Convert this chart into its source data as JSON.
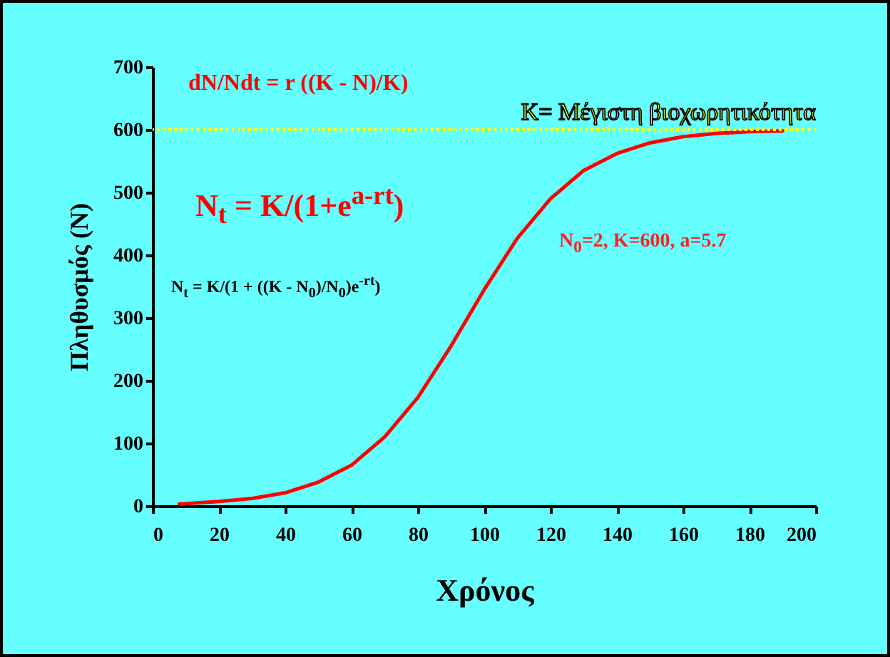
{
  "chart_data": {
    "type": "line",
    "xlabel": "Χρόνος",
    "ylabel": "Πληθυσμός (N)",
    "x": [
      8,
      20,
      30,
      40,
      50,
      60,
      70,
      80,
      90,
      100,
      110,
      120,
      130,
      140,
      150,
      160,
      170,
      180,
      190
    ],
    "series": [
      {
        "color": "#ff0000",
        "values": [
          3,
          7,
          12,
          21,
          38,
          65,
          110,
          173,
          255,
          345,
          427,
          490,
          535,
          562,
          579,
          589,
          594,
          597,
          598
        ]
      }
    ],
    "xlim": [
      0,
      200
    ],
    "xticks": [
      0,
      20,
      40,
      60,
      80,
      100,
      120,
      140,
      160,
      180,
      200
    ],
    "ylim": [
      0,
      700
    ],
    "yticks": [
      0,
      100,
      200,
      300,
      400,
      500,
      600,
      700
    ],
    "ref_lines": [
      {
        "axis": "y",
        "value": 600,
        "label": "K= Μέγιστη βιοχωρητικότητα",
        "color": "#ffff00",
        "line_style": "dotted"
      }
    ],
    "annotations": [
      "dN/Ndt = r ((K - N)/K)",
      "N$_{t}$ = K/(1+e$^{a-rt}$)",
      "N$_{t}$ = K/(1 + ((K - N$_{0}$)/N$_{0}$)e$^{-rt}$)",
      "N$_{0}$=2,   K=600,  a=5.7"
    ],
    "grid": false,
    "marker": "none",
    "line_style": "solid"
  }
}
